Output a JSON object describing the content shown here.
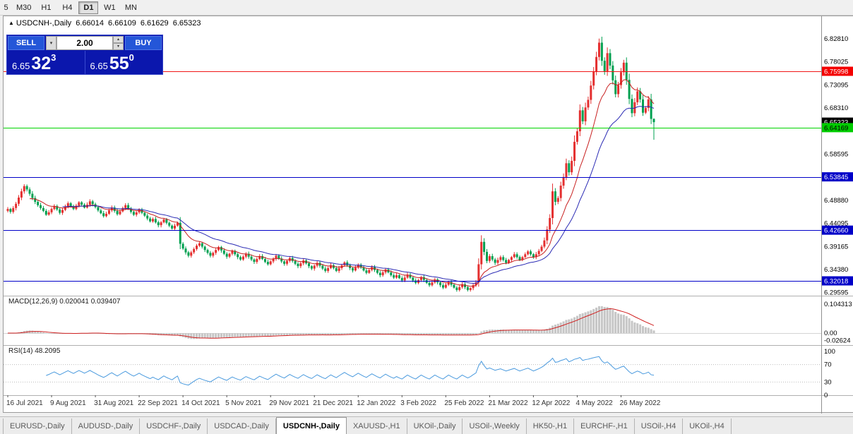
{
  "toolbar": {
    "timeframes": [
      "5",
      "M30",
      "H1",
      "H4",
      "D1",
      "W1",
      "MN"
    ],
    "active": "D1"
  },
  "chart_header": {
    "symbol": "USDCNH-,Daily",
    "open": "6.66014",
    "high": "6.66109",
    "low": "6.61629",
    "close": "6.65323"
  },
  "icons": {
    "symbol_arrow": "▲",
    "spin_up": "▴",
    "spin_down": "▾",
    "dropdown": "▾"
  },
  "trade_panel": {
    "sell_label": "SELL",
    "buy_label": "BUY",
    "volume": "2.00",
    "bid": {
      "prefix": "6.65",
      "big": "32",
      "sup": "3"
    },
    "ask": {
      "prefix": "6.65",
      "big": "55",
      "sup": "0"
    }
  },
  "price_axis_labels": [
    "6.82810",
    "6.78025",
    "6.73095",
    "6.68310",
    "6.58595",
    "6.48880",
    "6.44095",
    "6.39165",
    "6.34380",
    "6.29595"
  ],
  "hlines": [
    {
      "value": 6.75998,
      "label": "6.75998",
      "color": "#f01818",
      "tag": "#f40000",
      "text": "#ffffff"
    },
    {
      "value": 6.64169,
      "label": "6.64169",
      "color": "#00d400",
      "tag": "#00cc00",
      "text": "#000000"
    },
    {
      "value": 6.53845,
      "label": "6.53845",
      "color": "#0000c8",
      "tag": "#0000c8",
      "text": "#ffffff"
    },
    {
      "value": 6.4266,
      "label": "6.42660",
      "color": "#0000c8",
      "tag": "#0000c8",
      "text": "#ffffff"
    },
    {
      "value": 6.32018,
      "label": "6.32018",
      "color": "#0000c8",
      "tag": "#0000c8",
      "text": "#ffffff"
    }
  ],
  "price_tag": {
    "value": 6.65323,
    "label": "6.65323",
    "tag": "#000000",
    "text": "#ffffff"
  },
  "indicators": {
    "macd": {
      "label": "MACD(12,26,9) 0.020041 0.039407",
      "fast": 12,
      "slow": 26,
      "signal": 9,
      "hist_color": "#c6c6c6",
      "signal_color": "#d02020",
      "axis": [
        {
          "v": 0.104313,
          "t": "0.104313"
        },
        {
          "v": 0,
          "t": "0.00"
        },
        {
          "v": -0.02624,
          "t": "-0.02624"
        }
      ]
    },
    "rsi": {
      "label": "RSI(14) 48.2095",
      "period": 14,
      "color": "#4a9ade",
      "levels": [
        70,
        30
      ],
      "axis": [
        {
          "v": 100,
          "t": "100"
        },
        {
          "v": 70,
          "t": "70"
        },
        {
          "v": 30,
          "t": "30"
        },
        {
          "v": 0,
          "t": "0"
        }
      ]
    }
  },
  "date_axis": {
    "labels": [
      "16 Jul 2021",
      "9 Aug 2021",
      "31 Aug 2021",
      "22 Sep 2021",
      "14 Oct 2021",
      "5 Nov 2021",
      "29 Nov 2021",
      "21 Dec 2021",
      "12 Jan 2022",
      "3 Feb 2022",
      "25 Feb 2022",
      "21 Mar 2022",
      "12 Apr 2022",
      "4 May 2022",
      "26 May 2022"
    ],
    "indices": [
      0,
      16,
      32,
      48,
      64,
      80,
      96,
      112,
      128,
      144,
      160,
      176,
      192,
      208,
      224
    ]
  },
  "tabs": {
    "items": [
      "EURUSD-,Daily",
      "AUDUSD-,Daily",
      "USDCHF-,Daily",
      "USDCAD-,Daily",
      "USDCNH-,Daily",
      "XAUUSD-,H1",
      "UKOil-,Daily",
      "USOil-,Weekly",
      "HK50-,H1",
      "EURCHF-,H1",
      "USOil-,H4",
      "UKOil-,H4"
    ],
    "active": "USDCNH-,Daily"
  },
  "chart_data": {
    "type": "candlestick",
    "symbol": "USDCNH",
    "timeframe": "Daily",
    "price_range": [
      6.289,
      6.876
    ],
    "up_color": "#e42f2f",
    "down_color": "#00a050",
    "ma_fast_color": "#c82020",
    "ma_slow_color": "#2a2ab4",
    "closes": [
      6.471,
      6.465,
      6.473,
      6.482,
      6.495,
      6.508,
      6.519,
      6.512,
      6.503,
      6.494,
      6.486,
      6.479,
      6.473,
      6.467,
      6.459,
      6.464,
      6.471,
      6.477,
      6.47,
      6.463,
      6.469,
      6.476,
      6.483,
      6.477,
      6.471,
      6.478,
      6.485,
      6.48,
      6.474,
      6.48,
      6.487,
      6.481,
      6.475,
      6.468,
      6.462,
      6.456,
      6.461,
      6.468,
      6.474,
      6.467,
      6.46,
      6.466,
      6.473,
      6.479,
      6.472,
      6.465,
      6.459,
      6.464,
      6.47,
      6.463,
      6.457,
      6.451,
      6.445,
      6.45,
      6.443,
      6.437,
      6.443,
      6.449,
      6.442,
      6.436,
      6.43,
      6.436,
      6.442,
      6.398,
      6.388,
      6.38,
      6.373,
      6.38,
      6.387,
      6.394,
      6.399,
      6.392,
      6.385,
      6.379,
      6.373,
      6.379,
      6.385,
      6.391,
      6.384,
      6.377,
      6.371,
      6.377,
      6.383,
      6.376,
      6.37,
      6.365,
      6.371,
      6.377,
      6.371,
      6.365,
      6.36,
      6.366,
      6.372,
      6.366,
      6.36,
      6.355,
      6.361,
      6.367,
      6.373,
      6.367,
      6.361,
      6.356,
      6.362,
      6.368,
      6.362,
      6.356,
      6.351,
      6.357,
      6.363,
      6.357,
      6.351,
      6.346,
      6.352,
      6.358,
      6.352,
      6.346,
      6.341,
      6.347,
      6.353,
      6.347,
      6.341,
      6.347,
      6.353,
      6.359,
      6.353,
      6.347,
      6.342,
      6.348,
      6.354,
      6.348,
      6.342,
      6.337,
      6.343,
      6.349,
      6.343,
      6.337,
      6.332,
      6.338,
      6.344,
      6.338,
      6.332,
      6.327,
      6.332,
      6.326,
      6.321,
      6.327,
      6.333,
      6.327,
      6.321,
      6.316,
      6.322,
      6.328,
      6.322,
      6.316,
      6.311,
      6.317,
      6.323,
      6.317,
      6.311,
      6.306,
      6.312,
      6.318,
      6.312,
      6.306,
      6.301,
      6.307,
      6.313,
      6.307,
      6.301,
      6.305,
      6.311,
      6.317,
      6.355,
      6.402,
      6.381,
      6.362,
      6.372,
      6.365,
      6.358,
      6.364,
      6.37,
      6.364,
      6.358,
      6.364,
      6.37,
      6.376,
      6.37,
      6.364,
      6.37,
      6.376,
      6.382,
      6.376,
      6.37,
      6.376,
      6.383,
      6.392,
      6.405,
      6.428,
      6.452,
      6.508,
      6.486,
      6.494,
      6.52,
      6.538,
      6.567,
      6.548,
      6.572,
      6.612,
      6.634,
      6.678,
      6.655,
      6.684,
      6.7,
      6.73,
      6.76,
      6.79,
      6.82,
      6.782,
      6.76,
      6.798,
      6.772,
      6.741,
      6.712,
      6.731,
      6.758,
      6.778,
      6.742,
      6.702,
      6.672,
      6.695,
      6.718,
      6.701,
      6.673,
      6.683,
      6.701,
      6.66,
      6.653
    ],
    "last_candle": {
      "open": 6.66014,
      "high": 6.66109,
      "low": 6.61629,
      "close": 6.65323
    }
  }
}
